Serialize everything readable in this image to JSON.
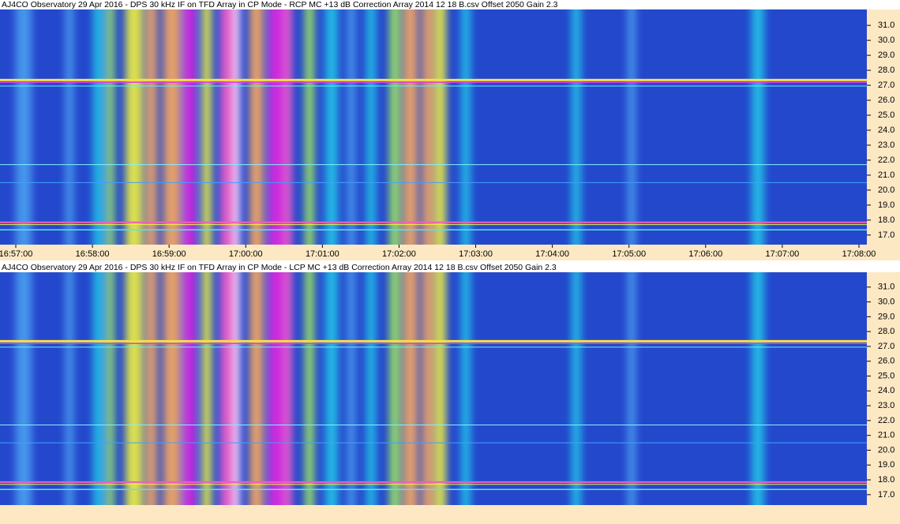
{
  "chart_data": [
    {
      "type": "spectrogram",
      "title": "AJ4CO Observatory 29 Apr 2016 - DPS 30 kHz IF on TFD Array in CP Mode - RCP  MC +13 dB  Correction Array 2014 12 18 B.csv  Offset 2050  Gain 2.3",
      "ylim": [
        16.36,
        32.06
      ],
      "yticks": [
        {
          "value": 17,
          "label": "17.0"
        },
        {
          "value": 18,
          "label": "18.0"
        },
        {
          "value": 19,
          "label": "19.0"
        },
        {
          "value": 20,
          "label": "20.0"
        },
        {
          "value": 21,
          "label": "21.0"
        },
        {
          "value": 22,
          "label": "22.0"
        },
        {
          "value": 23,
          "label": "23.0"
        },
        {
          "value": 24,
          "label": "24.0"
        },
        {
          "value": 25,
          "label": "25.0"
        },
        {
          "value": 26,
          "label": "26.0"
        },
        {
          "value": 27,
          "label": "27.0"
        },
        {
          "value": 28,
          "label": "28.0"
        },
        {
          "value": 29,
          "label": "29.0"
        },
        {
          "value": 30,
          "label": "30.0"
        },
        {
          "value": 31,
          "label": "31.0"
        }
      ],
      "xticks": [
        "16:57:00",
        "16:58:00",
        "16:59:00",
        "17:00:00",
        "17:01:00",
        "17:02:00",
        "17:03:00",
        "17:04:00",
        "17:05:00",
        "17:06:00",
        "17:07:00",
        "17:08:00"
      ]
    },
    {
      "type": "spectrogram",
      "title": "AJ4CO Observatory 29 Apr 2016 - DPS 30 kHz IF on TFD Array in CP Mode - LCP  MC +13 dB  Correction Array 2014 12 18 B.csv  Offset 2050  Gain 2.3",
      "ylim": [
        16.3,
        32.0
      ],
      "yticks": [
        {
          "value": 17,
          "label": "17.0"
        },
        {
          "value": 18,
          "label": "18.0"
        },
        {
          "value": 19,
          "label": "19.0"
        },
        {
          "value": 20,
          "label": "20.0"
        },
        {
          "value": 21,
          "label": "21.0"
        },
        {
          "value": 22,
          "label": "22.0"
        },
        {
          "value": 23,
          "label": "23.0"
        },
        {
          "value": 24,
          "label": "24.0"
        },
        {
          "value": 25,
          "label": "25.0"
        },
        {
          "value": 26,
          "label": "26.0"
        },
        {
          "value": 27,
          "label": "27.0"
        },
        {
          "value": 28,
          "label": "28.0"
        },
        {
          "value": 29,
          "label": "29.0"
        },
        {
          "value": 30,
          "label": "30.0"
        },
        {
          "value": 31,
          "label": "31.0"
        }
      ]
    }
  ]
}
